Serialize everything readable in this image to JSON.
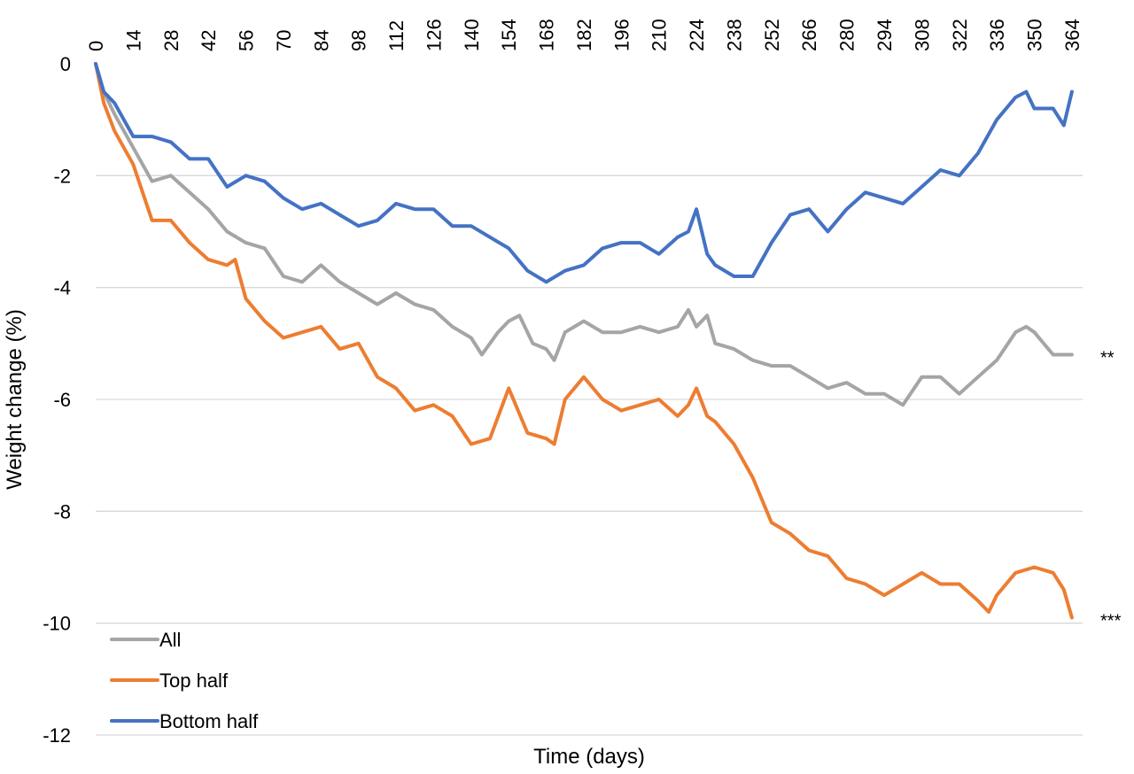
{
  "chart_data": {
    "type": "line",
    "title": "",
    "xlabel": "Time (days)",
    "ylabel": "Weight change (%)",
    "xlim": [
      0,
      368
    ],
    "ylim": [
      -12,
      0
    ],
    "x_axis_position": "top",
    "x_ticks": [
      0,
      14,
      28,
      42,
      56,
      70,
      84,
      98,
      112,
      126,
      140,
      154,
      168,
      182,
      196,
      210,
      224,
      238,
      252,
      266,
      280,
      294,
      308,
      322,
      336,
      350,
      364
    ],
    "y_ticks": [
      0,
      -2,
      -4,
      -6,
      -8,
      -10,
      -12
    ],
    "grid": true,
    "legend_position": "bottom-left",
    "series": [
      {
        "name": "All",
        "color": "#a5a5a5",
        "end_annotation": "**",
        "x": [
          0,
          3,
          7,
          14,
          21,
          28,
          35,
          42,
          49,
          56,
          63,
          70,
          77,
          84,
          91,
          98,
          105,
          112,
          119,
          126,
          133,
          140,
          144,
          150,
          154,
          158,
          163,
          168,
          171,
          175,
          182,
          189,
          196,
          203,
          210,
          217,
          221,
          224,
          228,
          231,
          238,
          245,
          252,
          259,
          266,
          273,
          280,
          287,
          294,
          301,
          308,
          315,
          322,
          329,
          336,
          343,
          347,
          350,
          357,
          364
        ],
        "y": [
          0,
          -0.5,
          -0.9,
          -1.5,
          -2.1,
          -2.0,
          -2.3,
          -2.6,
          -3.0,
          -3.2,
          -3.3,
          -3.8,
          -3.9,
          -3.6,
          -3.9,
          -4.1,
          -4.3,
          -4.1,
          -4.3,
          -4.4,
          -4.7,
          -4.9,
          -5.2,
          -4.8,
          -4.6,
          -4.5,
          -5.0,
          -5.1,
          -5.3,
          -4.8,
          -4.6,
          -4.8,
          -4.8,
          -4.7,
          -4.8,
          -4.7,
          -4.4,
          -4.7,
          -4.5,
          -5.0,
          -5.1,
          -5.3,
          -5.4,
          -5.4,
          -5.6,
          -5.8,
          -5.7,
          -5.9,
          -5.9,
          -6.1,
          -5.6,
          -5.6,
          -5.9,
          -5.6,
          -5.3,
          -4.8,
          -4.7,
          -4.8,
          -5.2,
          -5.2
        ]
      },
      {
        "name": "Top half",
        "color": "#ed7d31",
        "end_annotation": "***",
        "x": [
          0,
          3,
          7,
          14,
          21,
          28,
          35,
          42,
          49,
          52,
          56,
          63,
          70,
          77,
          84,
          91,
          98,
          105,
          112,
          119,
          126,
          133,
          140,
          147,
          154,
          161,
          168,
          171,
          175,
          182,
          189,
          196,
          203,
          210,
          217,
          221,
          224,
          228,
          231,
          238,
          245,
          252,
          259,
          266,
          273,
          280,
          287,
          294,
          301,
          308,
          315,
          322,
          329,
          333,
          336,
          343,
          350,
          357,
          361,
          364
        ],
        "y": [
          0,
          -0.7,
          -1.2,
          -1.8,
          -2.8,
          -2.8,
          -3.2,
          -3.5,
          -3.6,
          -3.5,
          -4.2,
          -4.6,
          -4.9,
          -4.8,
          -4.7,
          -5.1,
          -5.0,
          -5.6,
          -5.8,
          -6.2,
          -6.1,
          -6.3,
          -6.8,
          -6.7,
          -5.8,
          -6.6,
          -6.7,
          -6.8,
          -6.0,
          -5.6,
          -6.0,
          -6.2,
          -6.1,
          -6.0,
          -6.3,
          -6.1,
          -5.8,
          -6.3,
          -6.4,
          -6.8,
          -7.4,
          -8.2,
          -8.4,
          -8.7,
          -8.8,
          -9.2,
          -9.3,
          -9.5,
          -9.3,
          -9.1,
          -9.3,
          -9.3,
          -9.6,
          -9.8,
          -9.5,
          -9.1,
          -9.0,
          -9.1,
          -9.4,
          -9.9
        ]
      },
      {
        "name": "Bottom half",
        "color": "#4472c4",
        "end_annotation": "",
        "x": [
          0,
          3,
          7,
          14,
          21,
          28,
          35,
          42,
          49,
          56,
          63,
          70,
          77,
          84,
          91,
          98,
          105,
          112,
          119,
          126,
          133,
          140,
          147,
          154,
          161,
          168,
          175,
          182,
          189,
          196,
          203,
          210,
          217,
          221,
          224,
          228,
          231,
          238,
          245,
          252,
          259,
          266,
          273,
          280,
          287,
          294,
          301,
          308,
          315,
          322,
          329,
          336,
          343,
          347,
          350,
          357,
          361,
          364
        ],
        "y": [
          0,
          -0.5,
          -0.7,
          -1.3,
          -1.3,
          -1.4,
          -1.7,
          -1.7,
          -2.2,
          -2.0,
          -2.1,
          -2.4,
          -2.6,
          -2.5,
          -2.7,
          -2.9,
          -2.8,
          -2.5,
          -2.6,
          -2.6,
          -2.9,
          -2.9,
          -3.1,
          -3.3,
          -3.7,
          -3.9,
          -3.7,
          -3.6,
          -3.3,
          -3.2,
          -3.2,
          -3.4,
          -3.1,
          -3.0,
          -2.6,
          -3.4,
          -3.6,
          -3.8,
          -3.8,
          -3.2,
          -2.7,
          -2.6,
          -3.0,
          -2.6,
          -2.3,
          -2.4,
          -2.5,
          -2.2,
          -1.9,
          -2.0,
          -1.6,
          -1.0,
          -0.6,
          -0.5,
          -0.8,
          -0.8,
          -1.1,
          -0.5
        ]
      }
    ]
  }
}
